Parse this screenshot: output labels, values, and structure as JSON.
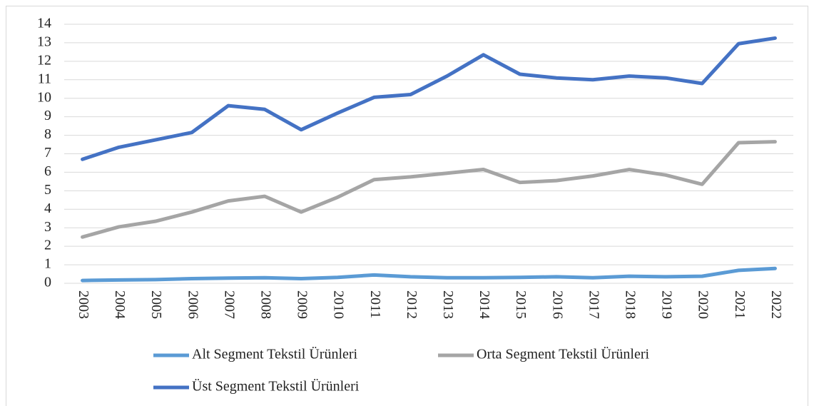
{
  "chart_data": {
    "type": "line",
    "categories": [
      "2003",
      "2004",
      "2005",
      "2006",
      "2007",
      "2008",
      "2009",
      "2010",
      "2011",
      "2012",
      "2013",
      "2014",
      "2015",
      "2016",
      "2017",
      "2018",
      "2019",
      "2020",
      "2021",
      "2022"
    ],
    "series": [
      {
        "name": "Alt Segment Tekstil Ürünleri",
        "color": "#5b9bd5",
        "values": [
          0.15,
          0.18,
          0.2,
          0.25,
          0.28,
          0.3,
          0.25,
          0.32,
          0.45,
          0.35,
          0.3,
          0.3,
          0.32,
          0.35,
          0.3,
          0.38,
          0.35,
          0.38,
          0.7,
          0.8
        ]
      },
      {
        "name": "Orta Segment Tekstil Ürünleri",
        "color": "#a5a5a5",
        "values": [
          2.5,
          3.05,
          3.35,
          3.85,
          4.45,
          4.7,
          3.85,
          4.65,
          5.6,
          5.75,
          5.95,
          6.15,
          5.45,
          5.55,
          5.8,
          6.15,
          5.85,
          5.35,
          7.6,
          7.65
        ]
      },
      {
        "name": "Üst Segment Tekstil Ürünleri",
        "color": "#4472c4",
        "values": [
          6.7,
          7.35,
          7.75,
          8.15,
          9.6,
          9.4,
          8.3,
          9.2,
          10.05,
          10.2,
          11.2,
          12.35,
          11.3,
          11.1,
          11.0,
          11.2,
          11.1,
          10.8,
          12.95,
          13.25
        ]
      }
    ],
    "ylim": [
      0,
      14
    ],
    "yticks": [
      0,
      1,
      2,
      3,
      4,
      5,
      6,
      7,
      8,
      9,
      10,
      11,
      12,
      13,
      14
    ],
    "grid": true,
    "legend": "bottom"
  }
}
